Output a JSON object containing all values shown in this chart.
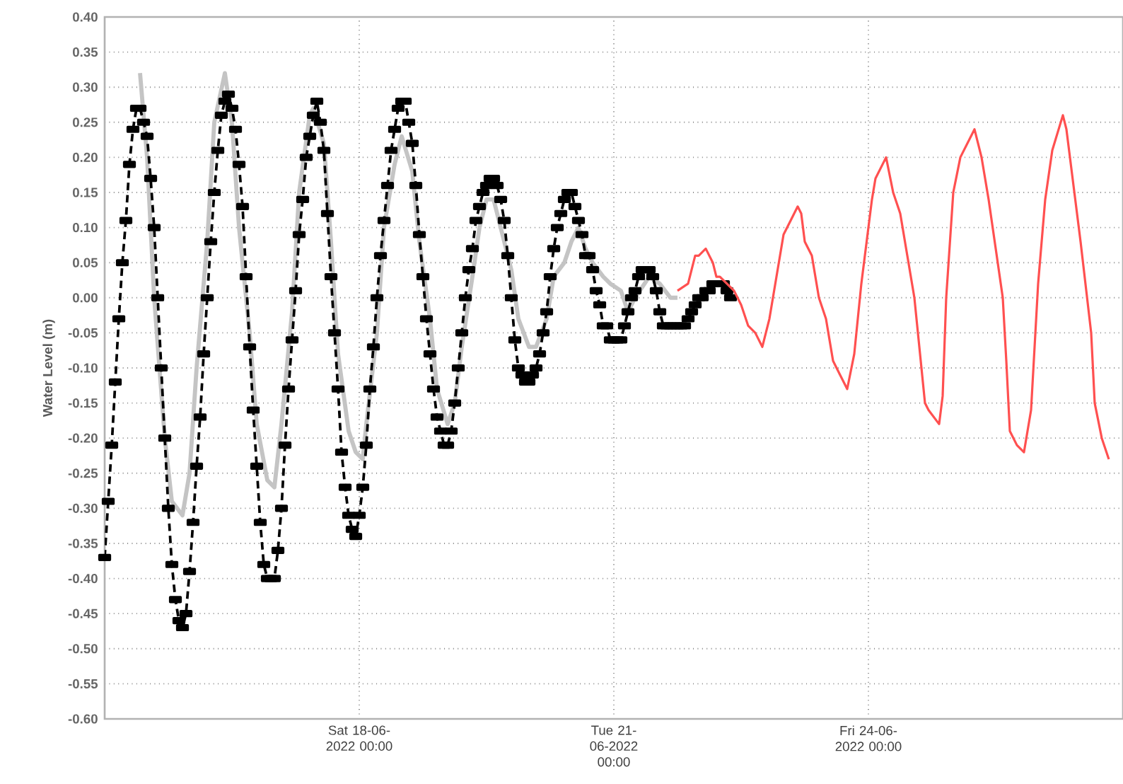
{
  "chart_data": {
    "type": "line",
    "ylabel": "Water Level (m)",
    "xlim": [
      "2022-06-15T00:00",
      "2022-06-27T00:00"
    ],
    "xticks": [
      {
        "value": "2022-06-18T00:00",
        "label": "Sat 18-06-2022 00:00"
      },
      {
        "value": "2022-06-21T00:00",
        "label": "Tue 21-06-2022 00:00"
      },
      {
        "value": "2022-06-24T00:00",
        "label": "Fri 24-06-2022 00:00"
      }
    ],
    "ylim": [
      -0.6,
      0.4
    ],
    "yticks": [
      {
        "value": -0.6,
        "label": "-0.60"
      },
      {
        "value": -0.55,
        "label": "-0.55"
      },
      {
        "value": -0.5,
        "label": "-0.50"
      },
      {
        "value": -0.45,
        "label": "-0.45"
      },
      {
        "value": -0.4,
        "label": "-0.40"
      },
      {
        "value": -0.35,
        "label": "-0.35"
      },
      {
        "value": -0.3,
        "label": "-0.30"
      },
      {
        "value": -0.25,
        "label": "-0.25"
      },
      {
        "value": -0.2,
        "label": "-0.20"
      },
      {
        "value": -0.15,
        "label": "-0.15"
      },
      {
        "value": -0.1,
        "label": "-0.10"
      },
      {
        "value": -0.05,
        "label": "-0.05"
      },
      {
        "value": 0.0,
        "label": "0.00"
      },
      {
        "value": 0.05,
        "label": "0.05"
      },
      {
        "value": 0.1,
        "label": "0.10"
      },
      {
        "value": 0.15,
        "label": "0.15"
      },
      {
        "value": 0.2,
        "label": "0.20"
      },
      {
        "value": 0.25,
        "label": "0.25"
      },
      {
        "value": 0.3,
        "label": "0.30"
      },
      {
        "value": 0.35,
        "label": "0.35"
      },
      {
        "value": 0.4,
        "label": "0.40"
      }
    ],
    "grid": true,
    "marker": "none",
    "line_style": "solid",
    "series": [
      {
        "color": "#c4c4c4",
        "x": [
          "2022-06-15T10:00",
          "2022-06-15T12:00",
          "2022-06-15T14:00",
          "2022-06-15T17:00",
          "2022-06-15T19:00",
          "2022-06-15T22:00",
          "2022-06-16T00:00",
          "2022-06-16T02:00",
          "2022-06-16T05:00",
          "2022-06-16T07:00",
          "2022-06-16T10:00",
          "2022-06-16T12:00",
          "2022-06-16T14:00",
          "2022-06-16T17:00",
          "2022-06-16T19:00",
          "2022-06-16T22:00",
          "2022-06-17T00:00",
          "2022-06-17T02:00",
          "2022-06-17T05:00",
          "2022-06-17T07:00",
          "2022-06-17T10:00",
          "2022-06-17T11:00",
          "2022-06-17T14:00",
          "2022-06-17T16:00",
          "2022-06-17T18:00",
          "2022-06-17T21:00",
          "2022-06-17T23:00",
          "2022-06-18T01:00",
          "2022-06-18T02:00",
          "2022-06-18T05:00",
          "2022-06-18T07:00",
          "2022-06-18T10:00",
          "2022-06-18T12:00",
          "2022-06-18T15:00",
          "2022-06-18T17:00",
          "2022-06-18T20:00",
          "2022-06-18T22:00",
          "2022-06-19T01:00",
          "2022-06-19T03:00",
          "2022-06-19T05:00",
          "2022-06-19T08:00",
          "2022-06-19T10:00",
          "2022-06-19T12:00",
          "2022-06-19T14:00",
          "2022-06-19T16:00",
          "2022-06-19T19:00",
          "2022-06-19T21:00",
          "2022-06-20T00:00",
          "2022-06-20T02:00",
          "2022-06-20T05:00",
          "2022-06-20T07:00",
          "2022-06-20T10:00",
          "2022-06-20T12:00",
          "2022-06-20T14:00",
          "2022-06-20T16:00",
          "2022-06-20T18:00",
          "2022-06-20T21:00",
          "2022-06-20T23:00",
          "2022-06-21T02:00",
          "2022-06-21T04:00",
          "2022-06-21T06:00",
          "2022-06-21T10:00",
          "2022-06-21T13:00",
          "2022-06-21T16:00",
          "2022-06-21T18:00"
        ],
        "values": [
          0.32,
          0.2,
          0.0,
          -0.2,
          -0.29,
          -0.31,
          -0.25,
          -0.1,
          0.08,
          0.25,
          0.32,
          0.25,
          0.1,
          -0.05,
          -0.18,
          -0.26,
          -0.27,
          -0.18,
          -0.02,
          0.15,
          0.26,
          0.27,
          0.22,
          0.08,
          -0.08,
          -0.19,
          -0.22,
          -0.23,
          -0.18,
          -0.05,
          0.1,
          0.19,
          0.23,
          0.18,
          0.08,
          -0.03,
          -0.13,
          -0.18,
          -0.15,
          -0.07,
          0.03,
          0.1,
          0.14,
          0.14,
          0.1,
          0.04,
          -0.03,
          -0.07,
          -0.07,
          -0.03,
          0.03,
          0.05,
          0.08,
          0.1,
          0.07,
          0.05,
          0.03,
          0.02,
          0.01,
          -0.02,
          0.0,
          0.03,
          0.02,
          0.0,
          0.0
        ]
      },
      {
        "color": "#000000",
        "marker": "square",
        "line_style": "dashed",
        "x": [
          "2022-06-15T00:00",
          "2022-06-15T01:00",
          "2022-06-15T02:00",
          "2022-06-15T03:00",
          "2022-06-15T04:00",
          "2022-06-15T05:00",
          "2022-06-15T06:00",
          "2022-06-15T07:00",
          "2022-06-15T08:00",
          "2022-06-15T09:00",
          "2022-06-15T10:00",
          "2022-06-15T11:00",
          "2022-06-15T12:00",
          "2022-06-15T13:00",
          "2022-06-15T14:00",
          "2022-06-15T15:00",
          "2022-06-15T16:00",
          "2022-06-15T17:00",
          "2022-06-15T18:00",
          "2022-06-15T19:00",
          "2022-06-15T20:00",
          "2022-06-15T21:00",
          "2022-06-15T22:00",
          "2022-06-15T23:00",
          "2022-06-16T00:00",
          "2022-06-16T01:00",
          "2022-06-16T02:00",
          "2022-06-16T03:00",
          "2022-06-16T04:00",
          "2022-06-16T05:00",
          "2022-06-16T06:00",
          "2022-06-16T07:00",
          "2022-06-16T08:00",
          "2022-06-16T09:00",
          "2022-06-16T10:00",
          "2022-06-16T11:00",
          "2022-06-16T12:00",
          "2022-06-16T13:00",
          "2022-06-16T14:00",
          "2022-06-16T15:00",
          "2022-06-16T16:00",
          "2022-06-16T17:00",
          "2022-06-16T18:00",
          "2022-06-16T19:00",
          "2022-06-16T20:00",
          "2022-06-16T21:00",
          "2022-06-16T22:00",
          "2022-06-16T23:00",
          "2022-06-17T00:00",
          "2022-06-17T01:00",
          "2022-06-17T02:00",
          "2022-06-17T03:00",
          "2022-06-17T04:00",
          "2022-06-17T05:00",
          "2022-06-17T06:00",
          "2022-06-17T07:00",
          "2022-06-17T08:00",
          "2022-06-17T09:00",
          "2022-06-17T10:00",
          "2022-06-17T11:00",
          "2022-06-17T12:00",
          "2022-06-17T13:00",
          "2022-06-17T14:00",
          "2022-06-17T15:00",
          "2022-06-17T16:00",
          "2022-06-17T17:00",
          "2022-06-17T18:00",
          "2022-06-17T19:00",
          "2022-06-17T20:00",
          "2022-06-17T21:00",
          "2022-06-17T22:00",
          "2022-06-17T23:00",
          "2022-06-18T00:00",
          "2022-06-18T01:00",
          "2022-06-18T02:00",
          "2022-06-18T03:00",
          "2022-06-18T04:00",
          "2022-06-18T05:00",
          "2022-06-18T06:00",
          "2022-06-18T07:00",
          "2022-06-18T08:00",
          "2022-06-18T09:00",
          "2022-06-18T10:00",
          "2022-06-18T11:00",
          "2022-06-18T12:00",
          "2022-06-18T13:00",
          "2022-06-18T14:00",
          "2022-06-18T15:00",
          "2022-06-18T16:00",
          "2022-06-18T17:00",
          "2022-06-18T18:00",
          "2022-06-18T19:00",
          "2022-06-18T20:00",
          "2022-06-18T21:00",
          "2022-06-18T22:00",
          "2022-06-18T23:00",
          "2022-06-19T00:00",
          "2022-06-19T01:00",
          "2022-06-19T02:00",
          "2022-06-19T03:00",
          "2022-06-19T04:00",
          "2022-06-19T05:00",
          "2022-06-19T06:00",
          "2022-06-19T07:00",
          "2022-06-19T08:00",
          "2022-06-19T09:00",
          "2022-06-19T10:00",
          "2022-06-19T11:00",
          "2022-06-19T12:00",
          "2022-06-19T13:00",
          "2022-06-19T14:00",
          "2022-06-19T15:00",
          "2022-06-19T16:00",
          "2022-06-19T17:00",
          "2022-06-19T18:00",
          "2022-06-19T19:00",
          "2022-06-19T20:00",
          "2022-06-19T21:00",
          "2022-06-19T22:00",
          "2022-06-19T23:00",
          "2022-06-20T00:00",
          "2022-06-20T01:00",
          "2022-06-20T02:00",
          "2022-06-20T03:00",
          "2022-06-20T04:00",
          "2022-06-20T05:00",
          "2022-06-20T06:00",
          "2022-06-20T07:00",
          "2022-06-20T08:00",
          "2022-06-20T09:00",
          "2022-06-20T10:00",
          "2022-06-20T11:00",
          "2022-06-20T12:00",
          "2022-06-20T13:00",
          "2022-06-20T14:00",
          "2022-06-20T15:00",
          "2022-06-20T16:00",
          "2022-06-20T17:00",
          "2022-06-20T18:00",
          "2022-06-20T19:00",
          "2022-06-20T20:00",
          "2022-06-20T21:00",
          "2022-06-20T22:00",
          "2022-06-20T23:00",
          "2022-06-21T00:00",
          "2022-06-21T01:00",
          "2022-06-21T02:00",
          "2022-06-21T03:00",
          "2022-06-21T04:00",
          "2022-06-21T05:00",
          "2022-06-21T06:00",
          "2022-06-21T07:00",
          "2022-06-21T08:00",
          "2022-06-21T09:00",
          "2022-06-21T10:00",
          "2022-06-21T11:00",
          "2022-06-21T12:00",
          "2022-06-21T13:00",
          "2022-06-21T14:00",
          "2022-06-21T15:00",
          "2022-06-21T16:00",
          "2022-06-21T17:00",
          "2022-06-21T18:00",
          "2022-06-21T19:00",
          "2022-06-21T20:00",
          "2022-06-21T21:00",
          "2022-06-21T22:00",
          "2022-06-21T23:00",
          "2022-06-22T00:00",
          "2022-06-22T01:00",
          "2022-06-22T02:00",
          "2022-06-22T03:00",
          "2022-06-22T04:00",
          "2022-06-22T05:00",
          "2022-06-22T06:00",
          "2022-06-22T07:00",
          "2022-06-22T08:00",
          "2022-06-22T09:00"
        ],
        "values": [
          -0.37,
          -0.29,
          -0.21,
          -0.12,
          -0.03,
          0.05,
          0.11,
          0.19,
          0.24,
          0.27,
          0.27,
          0.25,
          0.23,
          0.17,
          0.1,
          0.0,
          -0.1,
          -0.2,
          -0.3,
          -0.38,
          -0.43,
          -0.46,
          -0.47,
          -0.45,
          -0.39,
          -0.32,
          -0.24,
          -0.17,
          -0.08,
          0.0,
          0.08,
          0.15,
          0.21,
          0.26,
          0.28,
          0.29,
          0.27,
          0.24,
          0.19,
          0.13,
          0.03,
          -0.07,
          -0.16,
          -0.24,
          -0.32,
          -0.38,
          -0.4,
          -0.4,
          -0.4,
          -0.36,
          -0.3,
          -0.21,
          -0.13,
          -0.06,
          0.01,
          0.09,
          0.14,
          0.2,
          0.23,
          0.26,
          0.28,
          0.25,
          0.21,
          0.12,
          0.03,
          -0.05,
          -0.13,
          -0.22,
          -0.27,
          -0.31,
          -0.33,
          -0.34,
          -0.31,
          -0.27,
          -0.21,
          -0.13,
          -0.07,
          0.0,
          0.06,
          0.11,
          0.16,
          0.21,
          0.24,
          0.27,
          0.28,
          0.28,
          0.25,
          0.22,
          0.16,
          0.09,
          0.03,
          -0.03,
          -0.08,
          -0.13,
          -0.17,
          -0.19,
          -0.21,
          -0.21,
          -0.19,
          -0.15,
          -0.1,
          -0.05,
          0.0,
          0.04,
          0.07,
          0.11,
          0.13,
          0.15,
          0.16,
          0.17,
          0.17,
          0.16,
          0.14,
          0.11,
          0.06,
          0.0,
          -0.06,
          -0.1,
          -0.11,
          -0.12,
          -0.12,
          -0.11,
          -0.1,
          -0.08,
          -0.05,
          -0.02,
          0.03,
          0.07,
          0.1,
          0.12,
          0.14,
          0.15,
          0.15,
          0.13,
          0.11,
          0.09,
          0.06,
          0.06,
          0.04,
          0.01,
          -0.01,
          -0.04,
          -0.04,
          -0.06,
          -0.06,
          -0.06,
          -0.06,
          -0.04,
          -0.02,
          0.0,
          0.01,
          0.03,
          0.04,
          0.04,
          0.04,
          0.03,
          0.01,
          -0.02,
          -0.04,
          -0.04,
          -0.04,
          -0.04,
          -0.04,
          -0.04,
          -0.04,
          -0.03,
          -0.02,
          -0.01,
          0.0,
          0.0,
          0.01,
          0.01,
          0.02,
          0.02,
          0.02,
          0.02,
          0.01,
          0.0
        ]
      },
      {
        "color": "#ff5050",
        "x": [
          "2022-06-21T18:00",
          "2022-06-21T21:00",
          "2022-06-21T23:00",
          "2022-06-22T00:00",
          "2022-06-22T02:00",
          "2022-06-22T04:00",
          "2022-06-22T05:00",
          "2022-06-22T06:00",
          "2022-06-22T10:00",
          "2022-06-22T12:00",
          "2022-06-22T14:00",
          "2022-06-22T16:00",
          "2022-06-22T18:00",
          "2022-06-22T20:00",
          "2022-06-22T22:00",
          "2022-06-23T00:00",
          "2022-06-23T02:00",
          "2022-06-23T04:00",
          "2022-06-23T05:00",
          "2022-06-23T06:00",
          "2022-06-23T08:00",
          "2022-06-23T10:00",
          "2022-06-23T12:00",
          "2022-06-23T14:00",
          "2022-06-23T16:00",
          "2022-06-23T18:00",
          "2022-06-23T20:00",
          "2022-06-23T22:00",
          "2022-06-24T01:00",
          "2022-06-24T02:00",
          "2022-06-24T05:00",
          "2022-06-24T07:00",
          "2022-06-24T09:00",
          "2022-06-24T11:00",
          "2022-06-24T13:00",
          "2022-06-24T15:00",
          "2022-06-24T16:00",
          "2022-06-24T17:00",
          "2022-06-24T20:00",
          "2022-06-24T21:00",
          "2022-06-24T22:00",
          "2022-06-25T00:00",
          "2022-06-25T02:00",
          "2022-06-25T06:00",
          "2022-06-25T08:00",
          "2022-06-25T10:00",
          "2022-06-25T12:00",
          "2022-06-25T14:00",
          "2022-06-25T15:00",
          "2022-06-25T16:00",
          "2022-06-25T18:00",
          "2022-06-25T20:00",
          "2022-06-25T22:00",
          "2022-06-26T00:00",
          "2022-06-26T02:00",
          "2022-06-26T04:00",
          "2022-06-26T07:00",
          "2022-06-26T08:00",
          "2022-06-26T10:00",
          "2022-06-26T12:00",
          "2022-06-26T15:00",
          "2022-06-26T16:00",
          "2022-06-26T18:00",
          "2022-06-26T20:00"
        ],
        "values": [
          0.01,
          0.02,
          0.06,
          0.06,
          0.07,
          0.05,
          0.03,
          0.03,
          0.01,
          -0.01,
          -0.04,
          -0.05,
          -0.07,
          -0.03,
          0.03,
          0.09,
          0.11,
          0.13,
          0.12,
          0.08,
          0.06,
          0.0,
          -0.03,
          -0.09,
          -0.11,
          -0.13,
          -0.08,
          0.02,
          0.14,
          0.17,
          0.2,
          0.15,
          0.12,
          0.06,
          0.0,
          -0.1,
          -0.15,
          -0.16,
          -0.18,
          -0.14,
          0.0,
          0.15,
          0.2,
          0.24,
          0.2,
          0.14,
          0.07,
          0.0,
          -0.09,
          -0.19,
          -0.21,
          -0.22,
          -0.16,
          0.02,
          0.14,
          0.21,
          0.26,
          0.24,
          0.16,
          0.08,
          -0.05,
          -0.15,
          -0.2,
          -0.23
        ]
      }
    ]
  }
}
